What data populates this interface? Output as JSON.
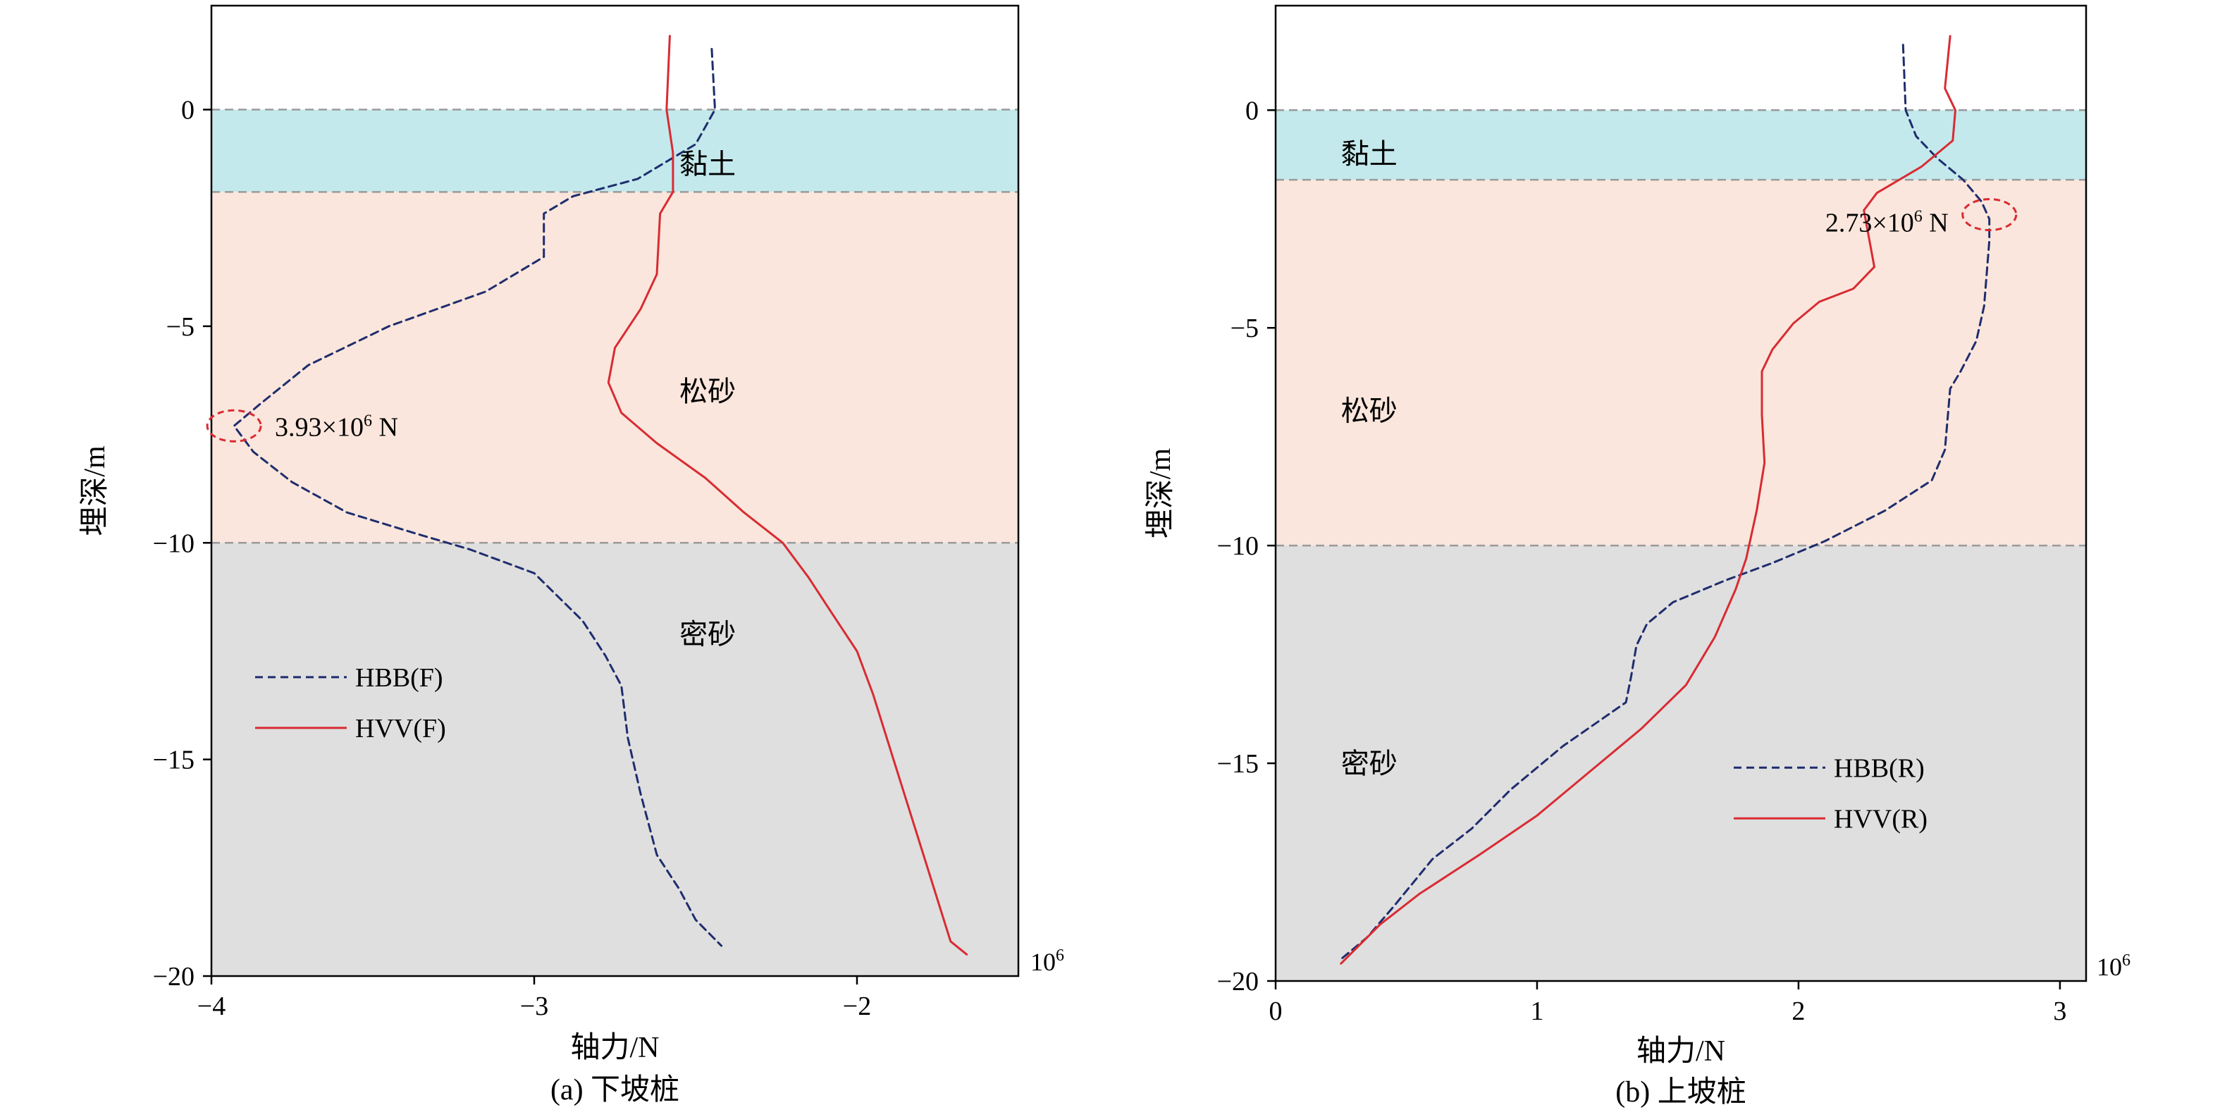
{
  "chart_data": [
    {
      "type": "line",
      "panel": "a",
      "caption": "(a) 下坡桩",
      "xlabel": "轴力/N",
      "ylabel": "埋深/m",
      "x_scale_label": "10",
      "x_scale_exp": "6",
      "xlim": [
        -4.0,
        -1.5
      ],
      "ylim": [
        -20,
        2.4
      ],
      "xticks": [
        -4,
        -3,
        -2
      ],
      "xtick_labels": [
        "−4",
        "−3",
        "−2"
      ],
      "yticks": [
        0,
        -5,
        -10,
        -15,
        -20
      ],
      "ytick_labels": [
        "0",
        "−5",
        "−10",
        "−15",
        "−20"
      ],
      "layers": [
        {
          "name": "黏土",
          "top": 0,
          "bottom": -1.9,
          "color": "#c3e9ec"
        },
        {
          "name": "松砂",
          "top": -1.9,
          "bottom": -10,
          "color": "#fae6dc"
        },
        {
          "name": "密砂",
          "top": -10,
          "bottom": -20,
          "color": "#dfdfdf"
        }
      ],
      "layer_label_positions": [
        {
          "name": "黏土",
          "x": -2.55,
          "y": -1.25
        },
        {
          "name": "松砂",
          "x": -2.55,
          "y": -6.5
        },
        {
          "name": "密砂",
          "x": -2.55,
          "y": -12.1
        }
      ],
      "boundaries": [
        0,
        -1.9,
        -10
      ],
      "series": [
        {
          "name": "HBB(F)",
          "style": "dashed",
          "color": "#1f2d6e",
          "points": [
            [
              -2.45,
              1.4
            ],
            [
              -2.44,
              0
            ],
            [
              -2.5,
              -0.8
            ],
            [
              -2.68,
              -1.6
            ],
            [
              -2.88,
              -2.0
            ],
            [
              -2.97,
              -2.4
            ],
            [
              -2.97,
              -3.4
            ],
            [
              -3.15,
              -4.2
            ],
            [
              -3.45,
              -5.0
            ],
            [
              -3.7,
              -5.9
            ],
            [
              -3.85,
              -6.8
            ],
            [
              -3.93,
              -7.3
            ],
            [
              -3.87,
              -7.9
            ],
            [
              -3.75,
              -8.6
            ],
            [
              -3.58,
              -9.3
            ],
            [
              -3.36,
              -9.8
            ],
            [
              -3.2,
              -10.15
            ],
            [
              -3.0,
              -10.7
            ],
            [
              -2.85,
              -11.8
            ],
            [
              -2.78,
              -12.6
            ],
            [
              -2.73,
              -13.3
            ],
            [
              -2.71,
              -14.5
            ],
            [
              -2.67,
              -15.8
            ],
            [
              -2.62,
              -17.2
            ],
            [
              -2.55,
              -18.0
            ],
            [
              -2.5,
              -18.7
            ],
            [
              -2.42,
              -19.3
            ]
          ]
        },
        {
          "name": "HVV(F)",
          "style": "solid",
          "color": "#d92b33",
          "points": [
            [
              -2.58,
              1.7
            ],
            [
              -2.59,
              0
            ],
            [
              -2.57,
              -1.0
            ],
            [
              -2.57,
              -1.9
            ],
            [
              -2.61,
              -2.4
            ],
            [
              -2.62,
              -3.8
            ],
            [
              -2.67,
              -4.6
            ],
            [
              -2.75,
              -5.5
            ],
            [
              -2.77,
              -6.3
            ],
            [
              -2.73,
              -7.0
            ],
            [
              -2.62,
              -7.7
            ],
            [
              -2.47,
              -8.5
            ],
            [
              -2.35,
              -9.3
            ],
            [
              -2.23,
              -10.0
            ],
            [
              -2.15,
              -10.8
            ],
            [
              -2.08,
              -11.6
            ],
            [
              -2.0,
              -12.5
            ],
            [
              -1.95,
              -13.5
            ],
            [
              -1.87,
              -15.4
            ],
            [
              -1.79,
              -17.3
            ],
            [
              -1.71,
              -19.2
            ],
            [
              -1.66,
              -19.5
            ]
          ]
        }
      ],
      "annotation": {
        "text": "3.93×10",
        "sup": "6",
        "unit": " N",
        "x": -3.93,
        "y": -7.3
      },
      "legend_position": "lower-left"
    },
    {
      "type": "line",
      "panel": "b",
      "caption": "(b) 上坡桩",
      "xlabel": "轴力/N",
      "ylabel": "埋深/m",
      "x_scale_label": "10",
      "x_scale_exp": "6",
      "xlim": [
        0,
        3.1
      ],
      "ylim": [
        -20,
        2.4
      ],
      "xticks": [
        0,
        1,
        2,
        3
      ],
      "xtick_labels": [
        "0",
        "1",
        "2",
        "3"
      ],
      "yticks": [
        0,
        -5,
        -10,
        -15,
        -20
      ],
      "ytick_labels": [
        "0",
        "−5",
        "−10",
        "−15",
        "−20"
      ],
      "layers": [
        {
          "name": "黏土",
          "top": 0,
          "bottom": -1.6,
          "color": "#c3e9ec"
        },
        {
          "name": "松砂",
          "top": -1.6,
          "bottom": -10,
          "color": "#fae6dc"
        },
        {
          "name": "密砂",
          "top": -10,
          "bottom": -20,
          "color": "#dfdfdf"
        }
      ],
      "layer_label_positions": [
        {
          "name": "黏土",
          "x": 0.25,
          "y": -1.0
        },
        {
          "name": "松砂",
          "x": 0.25,
          "y": -6.9
        },
        {
          "name": "密砂",
          "x": 0.25,
          "y": -15.0
        }
      ],
      "boundaries": [
        0,
        -1.6,
        -10
      ],
      "series": [
        {
          "name": "HBB(R)",
          "style": "dashed",
          "color": "#1f2d6e",
          "points": [
            [
              2.4,
              1.5
            ],
            [
              2.41,
              0
            ],
            [
              2.45,
              -0.6
            ],
            [
              2.53,
              -1.1
            ],
            [
              2.63,
              -1.6
            ],
            [
              2.7,
              -2.1
            ],
            [
              2.73,
              -2.5
            ],
            [
              2.73,
              -3.0
            ],
            [
              2.71,
              -4.5
            ],
            [
              2.68,
              -5.3
            ],
            [
              2.62,
              -6.0
            ],
            [
              2.58,
              -6.4
            ],
            [
              2.56,
              -7.8
            ],
            [
              2.51,
              -8.5
            ],
            [
              2.33,
              -9.2
            ],
            [
              2.1,
              -9.9
            ],
            [
              1.9,
              -10.4
            ],
            [
              1.72,
              -10.8
            ],
            [
              1.52,
              -11.3
            ],
            [
              1.42,
              -11.8
            ],
            [
              1.38,
              -12.3
            ],
            [
              1.36,
              -13.0
            ],
            [
              1.34,
              -13.6
            ],
            [
              1.1,
              -14.6
            ],
            [
              0.9,
              -15.6
            ],
            [
              0.75,
              -16.5
            ],
            [
              0.6,
              -17.2
            ],
            [
              0.45,
              -18.3
            ],
            [
              0.35,
              -19.0
            ],
            [
              0.25,
              -19.5
            ]
          ]
        },
        {
          "name": "HVV(R)",
          "style": "solid",
          "color": "#d92b33",
          "points": [
            [
              2.58,
              1.7
            ],
            [
              2.56,
              0.5
            ],
            [
              2.6,
              0
            ],
            [
              2.59,
              -0.7
            ],
            [
              2.47,
              -1.3
            ],
            [
              2.3,
              -1.9
            ],
            [
              2.25,
              -2.3
            ],
            [
              2.29,
              -3.6
            ],
            [
              2.21,
              -4.1
            ],
            [
              2.08,
              -4.4
            ],
            [
              1.98,
              -4.9
            ],
            [
              1.9,
              -5.5
            ],
            [
              1.86,
              -6.0
            ],
            [
              1.86,
              -7.0
            ],
            [
              1.87,
              -8.1
            ],
            [
              1.84,
              -9.2
            ],
            [
              1.8,
              -10.3
            ],
            [
              1.76,
              -11.0
            ],
            [
              1.68,
              -12.1
            ],
            [
              1.57,
              -13.2
            ],
            [
              1.4,
              -14.2
            ],
            [
              1.2,
              -15.2
            ],
            [
              1.0,
              -16.2
            ],
            [
              0.78,
              -17.1
            ],
            [
              0.55,
              -18.0
            ],
            [
              0.4,
              -18.7
            ],
            [
              0.25,
              -19.6
            ]
          ]
        }
      ],
      "annotation": {
        "text": "2.73×10",
        "sup": "6",
        "unit": " N",
        "x": 2.73,
        "y": -2.4
      },
      "legend_position": "lower-right"
    }
  ]
}
